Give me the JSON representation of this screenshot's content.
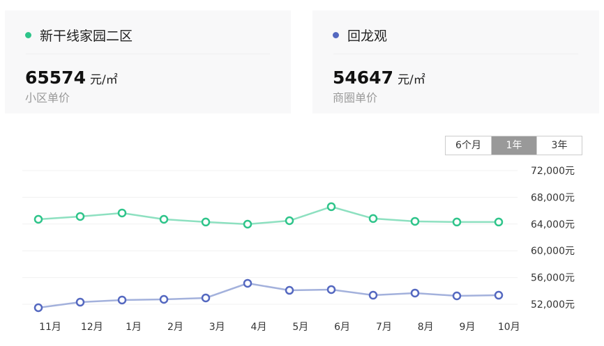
{
  "cards": [
    {
      "name": "新干线家园二区",
      "price": "65574",
      "unit": "元/㎡",
      "label": "小区单价",
      "color": "#2ec48a"
    },
    {
      "name": "回龙观",
      "price": "54647",
      "unit": "元/㎡",
      "label": "商圈单价",
      "color": "#5468c0"
    }
  ],
  "range_tabs": [
    {
      "label": "6个月",
      "active": false
    },
    {
      "label": "1年",
      "active": true
    },
    {
      "label": "3年",
      "active": false
    }
  ],
  "chart_data": {
    "type": "line",
    "title": "",
    "xlabel": "",
    "ylabel": "",
    "categories": [
      "11月",
      "12月",
      "1月",
      "2月",
      "3月",
      "4月",
      "5月",
      "6月",
      "7月",
      "8月",
      "9月",
      "10月"
    ],
    "series": [
      {
        "name": "新干线家园二区",
        "color": "#2ec48a",
        "values": [
          64710,
          65130,
          65650,
          64710,
          64300,
          63980,
          64500,
          66590,
          64820,
          64400,
          64300,
          64300
        ]
      },
      {
        "name": "回龙观",
        "color": "#5468c0",
        "values": [
          51480,
          52310,
          52630,
          52730,
          52940,
          55130,
          54080,
          54190,
          53350,
          53670,
          53250,
          53350
        ]
      }
    ],
    "yticks": [
      "72,000元",
      "68,000元",
      "64,000元",
      "60,000元",
      "56,000元",
      "52,000元"
    ],
    "ytick_values": [
      72000,
      68000,
      64000,
      60000,
      56000,
      52000
    ],
    "ylim": [
      52000,
      72000
    ],
    "grid": true,
    "y_axis_position": "right"
  }
}
